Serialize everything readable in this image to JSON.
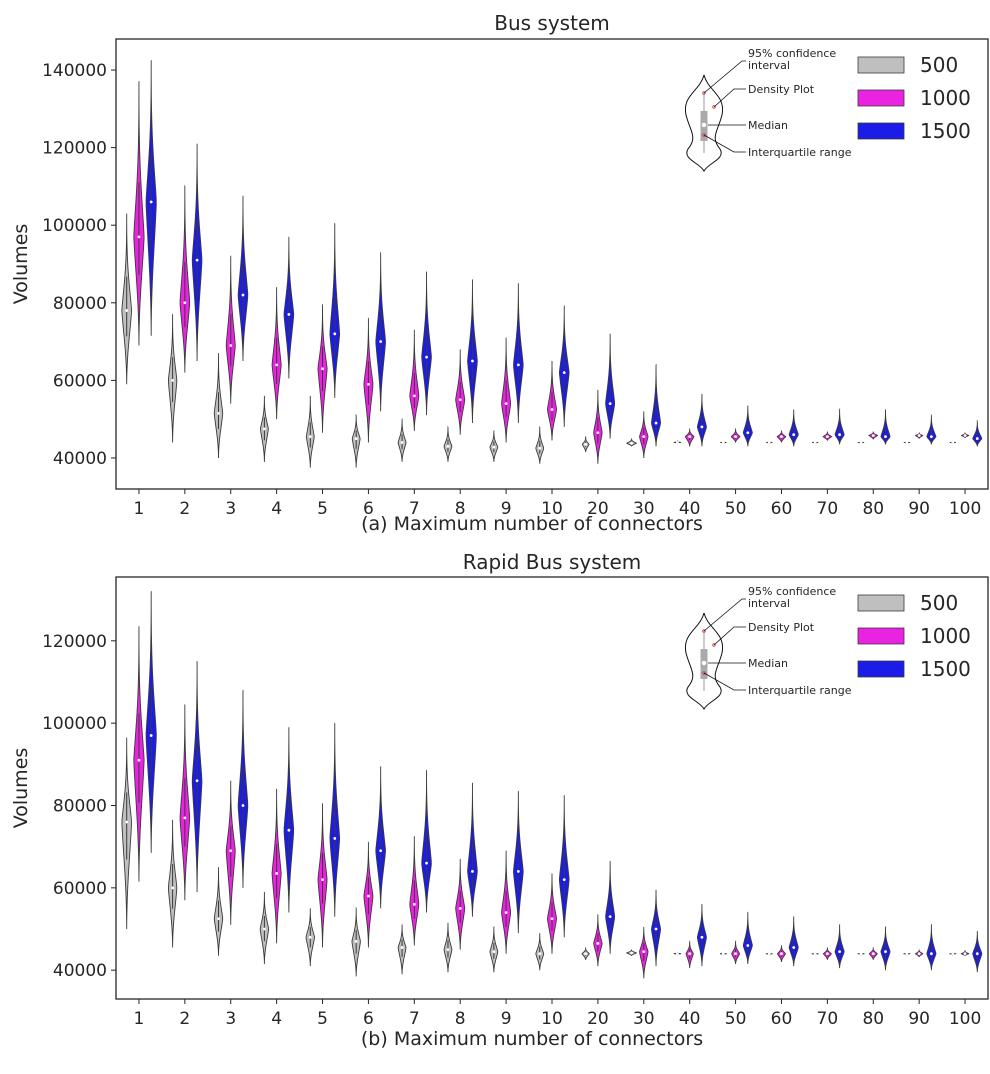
{
  "chart_data": [
    {
      "type": "violin",
      "title": "Bus system",
      "xlabel": "(a)  Maximum number of connectors",
      "ylabel": "Volumes",
      "ylim": [
        32000,
        148000
      ],
      "yticks": [
        40000,
        60000,
        80000,
        100000,
        120000,
        140000
      ],
      "categories": [
        "1",
        "2",
        "3",
        "4",
        "5",
        "6",
        "7",
        "8",
        "9",
        "10",
        "20",
        "30",
        "40",
        "50",
        "60",
        "70",
        "80",
        "90",
        "100"
      ],
      "legend_position": "top-right",
      "series": [
        {
          "name": "500",
          "color": "#bfbfbf",
          "median": [
            78000,
            60000,
            51500,
            47500,
            45500,
            45000,
            44000,
            43000,
            42800,
            42500,
            43500,
            43800,
            44000,
            44000,
            44000,
            44000,
            44000,
            44000,
            44000
          ],
          "min": [
            59000,
            44000,
            40000,
            39000,
            37500,
            37500,
            39000,
            39000,
            39000,
            38500,
            41500,
            43000,
            43800,
            43800,
            43800,
            43800,
            43800,
            43800,
            43800
          ],
          "max": [
            103000,
            77000,
            67000,
            56000,
            56000,
            51000,
            50000,
            48000,
            47000,
            48000,
            45500,
            45000,
            44300,
            44200,
            44200,
            44200,
            44200,
            44200,
            44200
          ],
          "width": [
            0.8,
            0.7,
            0.7,
            0.65,
            0.65,
            0.65,
            0.65,
            0.65,
            0.65,
            0.65,
            0.55,
            0.8,
            0.6,
            0.7,
            0.7,
            0.7,
            0.7,
            0.7,
            0.7
          ]
        },
        {
          "name": "1000",
          "color": "#ea22e2",
          "median": [
            97000,
            80000,
            69000,
            64000,
            63000,
            59000,
            56000,
            55000,
            54000,
            52500,
            46500,
            45500,
            45500,
            45500,
            45500,
            45500,
            45800,
            45800,
            45800
          ],
          "min": [
            69000,
            62000,
            54000,
            50000,
            46500,
            44000,
            47000,
            46000,
            44000,
            44500,
            38500,
            40000,
            43000,
            44000,
            44000,
            44500,
            44800,
            45000,
            45200
          ],
          "max": [
            137000,
            110000,
            92000,
            84000,
            79500,
            76000,
            73000,
            68000,
            71000,
            65000,
            57500,
            52000,
            47500,
            47500,
            47000,
            46800,
            46800,
            46500,
            46500
          ],
          "width": [
            0.85,
            0.8,
            0.75,
            0.75,
            0.75,
            0.75,
            0.75,
            0.75,
            0.75,
            0.75,
            0.7,
            0.7,
            0.7,
            0.7,
            0.7,
            0.7,
            0.7,
            0.6,
            0.6
          ]
        },
        {
          "name": "1500",
          "color": "#1c1ce8",
          "median": [
            106000,
            91000,
            82000,
            77000,
            72000,
            70000,
            66000,
            65000,
            64000,
            62000,
            54000,
            49000,
            48000,
            46500,
            46000,
            46000,
            45500,
            45500,
            45000
          ],
          "min": [
            71500,
            65000,
            65000,
            60500,
            55500,
            52000,
            51000,
            49000,
            49000,
            48000,
            45000,
            43000,
            43000,
            43000,
            43000,
            43500,
            43500,
            43500,
            43000
          ],
          "max": [
            142500,
            121000,
            107500,
            97000,
            100500,
            93000,
            88000,
            86000,
            85000,
            79000,
            72000,
            64000,
            56500,
            53500,
            52500,
            52500,
            52500,
            51000,
            49500
          ],
          "width": [
            0.85,
            0.8,
            0.8,
            0.8,
            0.8,
            0.8,
            0.8,
            0.8,
            0.8,
            0.8,
            0.75,
            0.75,
            0.75,
            0.75,
            0.75,
            0.75,
            0.75,
            0.75,
            0.75
          ]
        }
      ]
    },
    {
      "type": "violin",
      "title": "Rapid Bus system",
      "xlabel": "(b)  Maximum number of connectors",
      "ylabel": "Volumes",
      "ylim": [
        33000,
        135500
      ],
      "yticks": [
        40000,
        60000,
        80000,
        100000,
        120000
      ],
      "categories": [
        "1",
        "2",
        "3",
        "4",
        "5",
        "6",
        "7",
        "8",
        "9",
        "10",
        "20",
        "30",
        "40",
        "50",
        "60",
        "70",
        "80",
        "90",
        "100"
      ],
      "legend_position": "top-right",
      "series": [
        {
          "name": "500",
          "color": "#bfbfbf",
          "median": [
            76000,
            60000,
            52500,
            50000,
            48000,
            47000,
            45500,
            45000,
            44500,
            44000,
            44000,
            44200,
            44000,
            44000,
            44000,
            44000,
            44000,
            44000,
            44000
          ],
          "min": [
            50000,
            45500,
            43500,
            41500,
            41000,
            38500,
            39000,
            39500,
            39500,
            40000,
            42500,
            43500,
            43800,
            43800,
            43800,
            43800,
            43800,
            43800,
            43800
          ],
          "max": [
            96500,
            76500,
            65000,
            59000,
            55000,
            55000,
            51000,
            51500,
            50500,
            49000,
            45500,
            45000,
            44300,
            44200,
            44200,
            44200,
            44200,
            44200,
            44200
          ],
          "width": [
            0.8,
            0.7,
            0.7,
            0.7,
            0.7,
            0.7,
            0.65,
            0.65,
            0.65,
            0.65,
            0.6,
            0.8,
            0.6,
            0.7,
            0.7,
            0.7,
            0.7,
            0.7,
            0.7
          ]
        },
        {
          "name": "1000",
          "color": "#ea22e2",
          "median": [
            91000,
            77000,
            69000,
            63500,
            62000,
            58000,
            56000,
            55000,
            54000,
            52500,
            46500,
            44500,
            44000,
            44000,
            44000,
            44000,
            44000,
            44000,
            44000
          ],
          "min": [
            61500,
            57000,
            51000,
            46500,
            45500,
            45500,
            46000,
            45000,
            44000,
            44000,
            41000,
            38000,
            40500,
            41500,
            42000,
            42500,
            42500,
            43200,
            43500
          ],
          "max": [
            123500,
            104500,
            86000,
            84000,
            80500,
            71000,
            72500,
            67000,
            69000,
            63500,
            53500,
            50500,
            47000,
            47000,
            46000,
            45500,
            45500,
            45000,
            44800
          ],
          "width": [
            0.85,
            0.8,
            0.75,
            0.75,
            0.75,
            0.75,
            0.75,
            0.75,
            0.75,
            0.75,
            0.7,
            0.7,
            0.6,
            0.65,
            0.65,
            0.65,
            0.65,
            0.6,
            0.6
          ]
        },
        {
          "name": "1500",
          "color": "#1c1ce8",
          "median": [
            97000,
            86000,
            80000,
            74000,
            72000,
            69000,
            66000,
            64000,
            64000,
            62000,
            53000,
            50000,
            48000,
            46000,
            45500,
            44500,
            44500,
            44000,
            44000
          ],
          "min": [
            68500,
            59000,
            60000,
            54000,
            53000,
            55000,
            54000,
            53000,
            49000,
            48000,
            44000,
            41000,
            41000,
            41500,
            41000,
            40500,
            40000,
            40000,
            39500
          ],
          "max": [
            132000,
            115000,
            108000,
            99000,
            100000,
            89500,
            88500,
            85500,
            83500,
            82500,
            66500,
            59500,
            56000,
            54000,
            53000,
            51000,
            50500,
            51000,
            49500
          ],
          "width": [
            0.85,
            0.8,
            0.8,
            0.8,
            0.8,
            0.8,
            0.8,
            0.8,
            0.8,
            0.8,
            0.75,
            0.75,
            0.75,
            0.75,
            0.75,
            0.75,
            0.75,
            0.75,
            0.75
          ]
        }
      ]
    }
  ],
  "inset": {
    "labels": [
      "95% confidence\ninterval",
      "Density Plot",
      "Median",
      "Interquartile range"
    ]
  }
}
